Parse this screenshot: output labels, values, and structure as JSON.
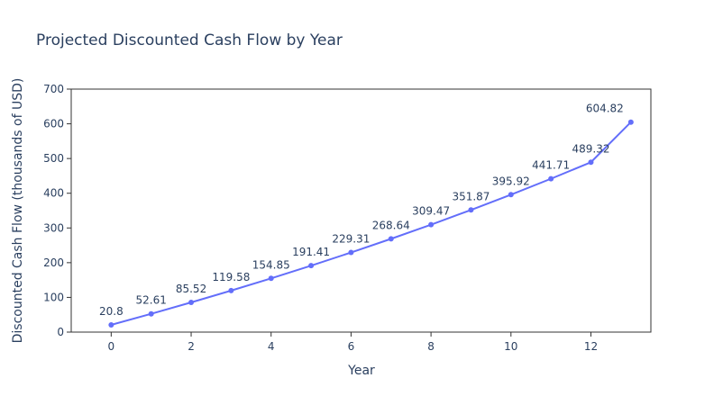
{
  "chart_data": {
    "type": "line",
    "title": "Projected Discounted Cash Flow by Year",
    "xlabel": "Year",
    "ylabel": "Discounted Cash Flow (thousands of USD)",
    "x": [
      0,
      1,
      2,
      3,
      4,
      5,
      6,
      7,
      8,
      9,
      10,
      11,
      12,
      13
    ],
    "values": [
      20.8,
      52.61,
      85.52,
      119.58,
      154.85,
      191.41,
      229.31,
      268.64,
      309.47,
      351.87,
      395.92,
      441.71,
      489.32,
      604.82
    ],
    "data_labels": [
      "20.8",
      "52.61",
      "85.52",
      "119.58",
      "154.85",
      "191.41",
      "229.31",
      "268.64",
      "309.47",
      "351.87",
      "395.92",
      "441.71",
      "489.32",
      "604.82"
    ],
    "xlim": [
      -1,
      13.5
    ],
    "ylim": [
      0,
      700
    ],
    "x_ticks": [
      0,
      2,
      4,
      6,
      8,
      10,
      12
    ],
    "y_ticks": [
      0,
      100,
      200,
      300,
      400,
      500,
      600,
      700
    ],
    "grid": false,
    "legend": "none",
    "color": "#636efa"
  }
}
